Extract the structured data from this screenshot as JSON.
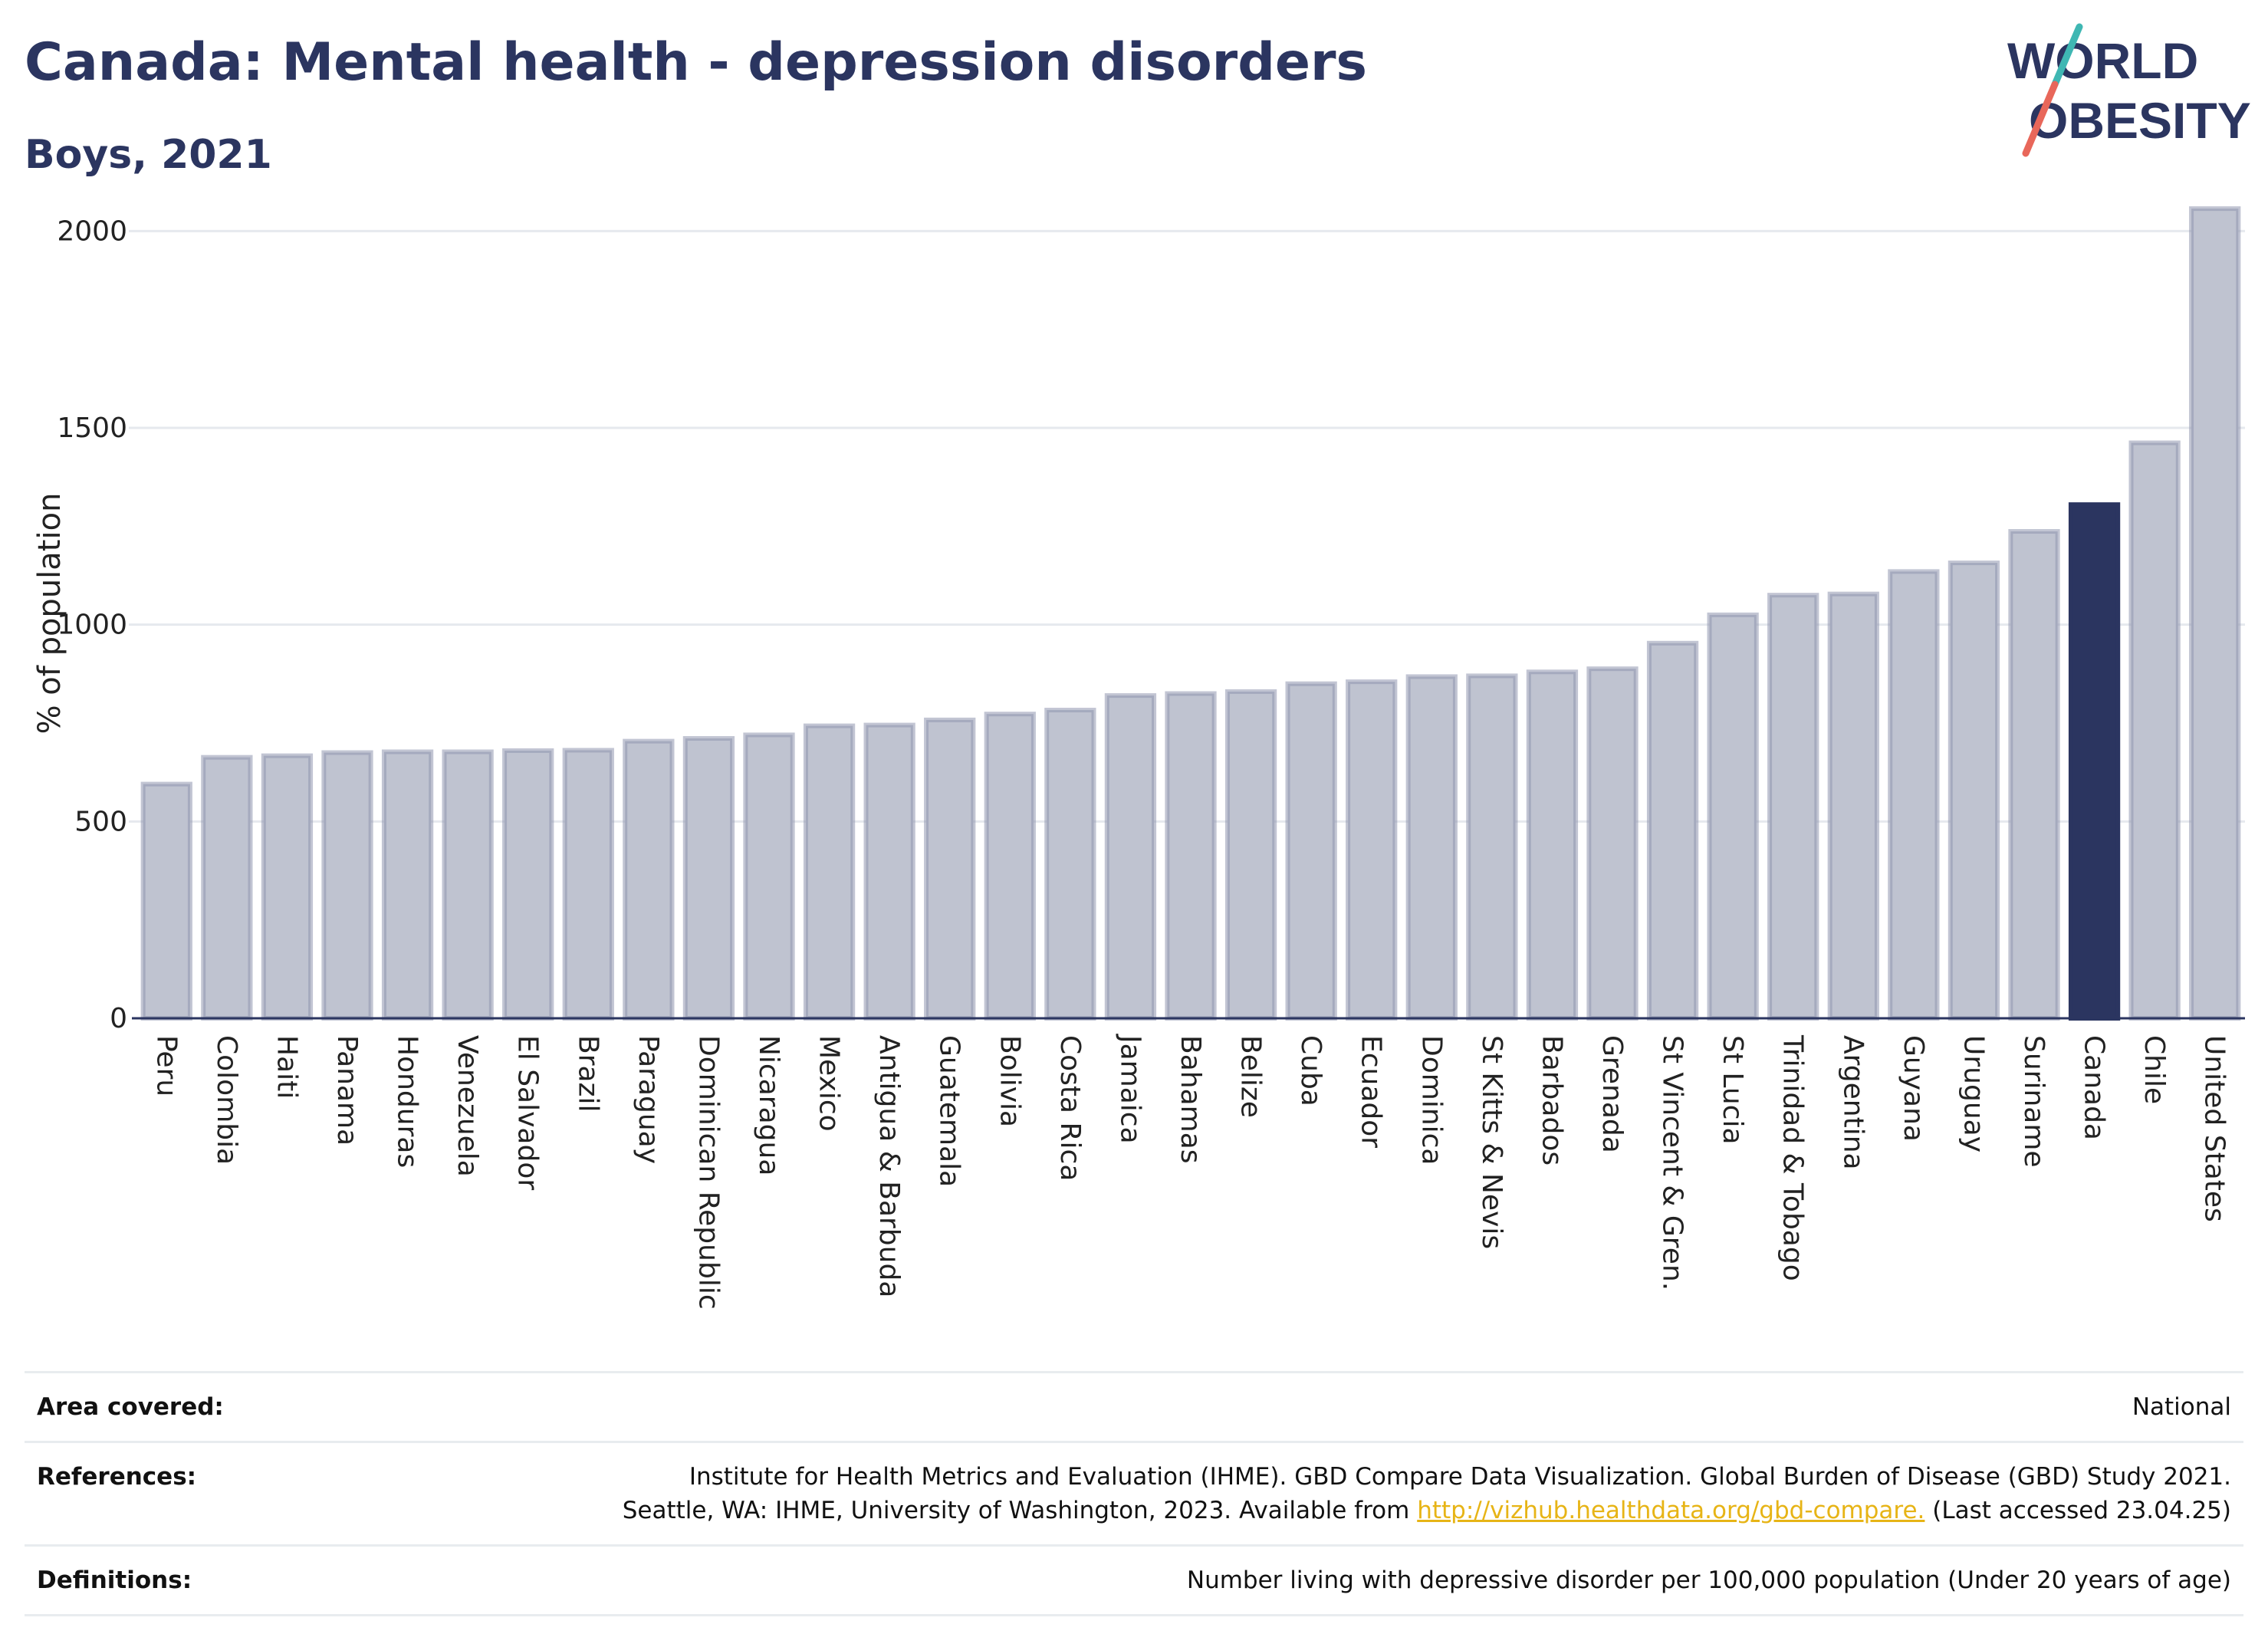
{
  "title": "Canada: Mental health - depression disorders",
  "subtitle": "Boys, 2021",
  "logo": {
    "line1": "WORLD",
    "line2": "OBESITY"
  },
  "colors": {
    "bar": "#bfc3d0",
    "bar_stroke": "#8f96ae",
    "highlight": "#2b3560",
    "title": "#2b3560",
    "grid": "#e6e9ee",
    "logo_teal": "#3fb7b3",
    "logo_red": "#e8675a"
  },
  "chart_data": {
    "type": "bar",
    "ylabel": "% of population",
    "ylim": [
      0,
      2100
    ],
    "yticks": [
      0,
      500,
      1000,
      1500,
      2000
    ],
    "grid": true,
    "highlight": "Canada",
    "categories": [
      "Peru",
      "Colombia",
      "Haiti",
      "Panama",
      "Honduras",
      "Venezuela",
      "El Salvador",
      "Brazil",
      "Paraguay",
      "Dominican Republic",
      "Nicaragua",
      "Mexico",
      "Antigua & Barbuda",
      "Guatemala",
      "Bolivia",
      "Costa Rica",
      "Jamaica",
      "Bahamas",
      "Belize",
      "Cuba",
      "Ecuador",
      "Dominica",
      "St Kitts & Nevis",
      "Barbados",
      "Grenada",
      "St Vincent & Gren.",
      "St Lucia",
      "Trinidad & Tobago",
      "Argentina",
      "Guyana",
      "Uruguay",
      "Suriname",
      "Canada",
      "Chile",
      "United States"
    ],
    "values": [
      595,
      663,
      667,
      675,
      677,
      677,
      680,
      681,
      704,
      711,
      720,
      743,
      745,
      758,
      773,
      783,
      820,
      825,
      830,
      850,
      855,
      868,
      870,
      880,
      888,
      953,
      1025,
      1075,
      1078,
      1135,
      1157,
      1237,
      1305,
      1462,
      2057
    ]
  },
  "info": {
    "area_label": "Area covered:",
    "area_value": "National",
    "references_label": "References:",
    "references_line1": "Institute for Health Metrics and Evaluation (IHME). GBD Compare Data Visualization. Global Burden of Disease (GBD) Study 2021.",
    "references_line2_pre": "Seattle, WA: IHME, University of Washington, 2023. Available from ",
    "references_link": "http://vizhub.healthdata.org/gbd-compare.",
    "references_line2_post": " (Last accessed 23.04.25)",
    "definitions_label": "Definitions:",
    "definitions_value": "Number living with depressive disorder per 100,000 population (Under 20 years of age)"
  }
}
